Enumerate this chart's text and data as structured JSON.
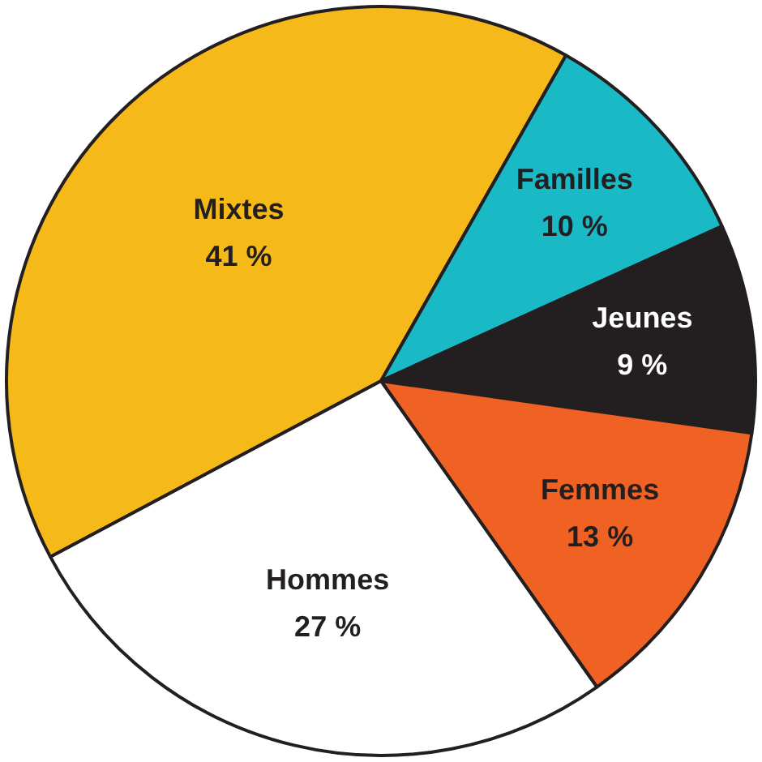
{
  "chart_data": {
    "type": "pie",
    "categories": [
      "Mixtes",
      "Familles",
      "Jeunes",
      "Femmes",
      "Hommes"
    ],
    "values": [
      41,
      10,
      9,
      13,
      27
    ],
    "colors": [
      "#f6b91a",
      "#1ab9c6",
      "#231f20",
      "#ef6224",
      "#ffffff"
    ],
    "value_labels": [
      "41 %",
      "10 %",
      "9 %",
      "13 %",
      "27 %"
    ]
  }
}
